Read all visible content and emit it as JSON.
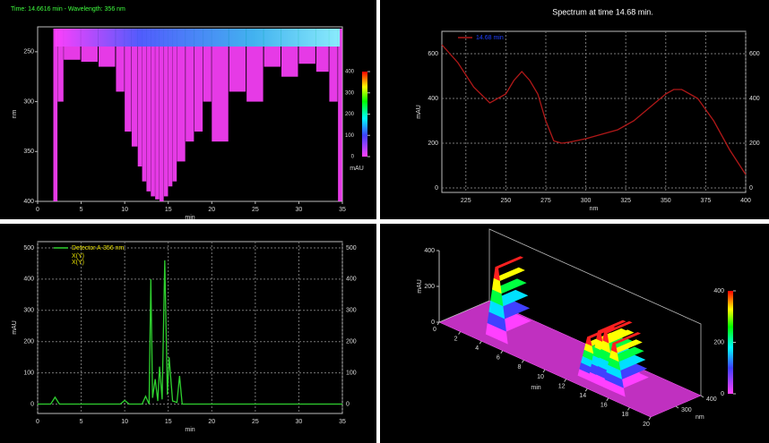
{
  "chart_data": [
    {
      "type": "heatmap",
      "title": "Time: 14.6616 min - Wavelength: 356 nm",
      "xlabel": "min",
      "ylabel": "nm",
      "x": [
        1.8,
        2.3,
        3,
        5,
        7,
        9,
        10,
        10.8,
        11.5,
        12,
        12.5,
        13,
        13.5,
        14,
        14.5,
        15,
        15.5,
        16,
        17,
        18,
        19,
        20,
        22,
        24,
        26,
        28,
        30,
        32,
        33.5,
        34.5
      ],
      "values": [
        400,
        300,
        258,
        260,
        265,
        290,
        330,
        345,
        365,
        380,
        390,
        395,
        398,
        400,
        395,
        385,
        380,
        360,
        340,
        330,
        300,
        340,
        290,
        300,
        265,
        275,
        262,
        270,
        300,
        400
      ],
      "color": "#ff40ff",
      "xlim": [
        0,
        35
      ],
      "ylim": [
        225,
        400
      ],
      "reversed_y": true,
      "xticks": [
        0,
        5,
        10,
        15,
        20,
        25,
        30,
        35
      ],
      "yticks": [
        250,
        300,
        350,
        400
      ],
      "colorbar_label": "mAU",
      "colorbar_lim": [
        0,
        400
      ],
      "colorbar_ticks": [
        0,
        100,
        200,
        300,
        400
      ]
    },
    {
      "type": "line",
      "title": "Spectrum at time 14.68 min.",
      "xlabel": "nm",
      "ylabel": "mAU",
      "x": [
        210,
        220,
        230,
        240,
        250,
        255,
        260,
        265,
        270,
        275,
        280,
        285,
        290,
        300,
        310,
        320,
        330,
        340,
        350,
        355,
        360,
        370,
        380,
        390,
        400
      ],
      "series": [
        {
          "name": "14.68 min",
          "color": "#b01818",
          "values": [
            640,
            560,
            450,
            380,
            420,
            480,
            520,
            480,
            420,
            300,
            210,
            200,
            205,
            220,
            240,
            260,
            300,
            360,
            420,
            440,
            440,
            400,
            300,
            170,
            60
          ]
        }
      ],
      "xlim": [
        210,
        400
      ],
      "ylim": [
        -20,
        700
      ],
      "xticks": [
        225,
        250,
        275,
        300,
        325,
        350,
        375,
        400
      ],
      "yticks": [
        0,
        200,
        400,
        600
      ],
      "grid": true
    },
    {
      "type": "line",
      "xlabel": "min",
      "ylabel": "mAU",
      "x": [
        0,
        1.5,
        2,
        2.5,
        5,
        9.5,
        10,
        10.5,
        12,
        12.4,
        12.8,
        13,
        13.2,
        13.5,
        13.8,
        14,
        14.3,
        14.6,
        14.9,
        15.1,
        15.5,
        16,
        16.3,
        16.6,
        17.5,
        20,
        25,
        30,
        35
      ],
      "series": [
        {
          "name": "Detector A-356 nm",
          "color": "#2fd02f",
          "values": [
            0,
            0,
            22,
            0,
            0,
            0,
            12,
            0,
            0,
            25,
            0,
            400,
            20,
            80,
            10,
            120,
            15,
            460,
            30,
            150,
            10,
            5,
            90,
            0,
            0,
            0,
            0,
            0,
            0
          ]
        }
      ],
      "legend_extra": [
        "X(Y)",
        "X(Y)"
      ],
      "xlim": [
        0,
        35
      ],
      "ylim": [
        -30,
        520
      ],
      "xticks": [
        0,
        5,
        10,
        15,
        20,
        25,
        30,
        35
      ],
      "yticks": [
        0,
        100,
        200,
        300,
        400,
        500
      ],
      "grid": true
    },
    {
      "type": "surface3d",
      "xlabel": "min",
      "zlabel": "nm",
      "ylabel": "mAU",
      "x": [
        4.5,
        13.2,
        14.2,
        14.8,
        15.6
      ],
      "values": [
        400,
        240,
        300,
        310,
        270
      ],
      "xlim": [
        0,
        20
      ],
      "xticks": [
        0,
        2,
        4,
        6,
        8,
        10,
        12,
        14,
        16,
        18,
        20
      ],
      "zlim": [
        200,
        400
      ],
      "zticks": [
        300,
        400
      ],
      "ylim": [
        0,
        400
      ],
      "yticks": [
        0,
        200,
        400
      ],
      "colorbar_ticks": [
        0,
        200,
        400
      ]
    }
  ]
}
